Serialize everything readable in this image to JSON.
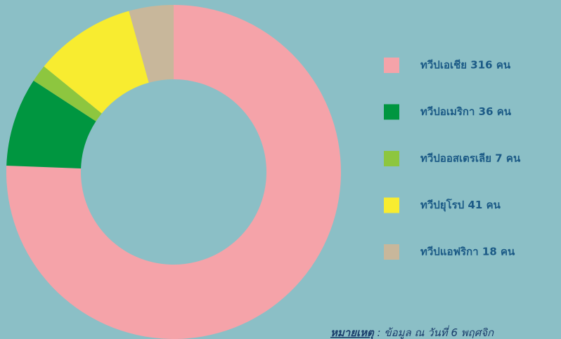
{
  "chart_data": {
    "type": "pie",
    "categories": [
      "ทวีปเอเชีย 316 คน",
      "ทวีปอเมริกา 36 คน",
      "ทวีปออสเตรเลีย 7 คน",
      "ทวีปยุโรป 41 คน",
      "ทวีปแอฟริกา 18 คน"
    ],
    "values": [
      316,
      36,
      7,
      41,
      18
    ],
    "colors": [
      "#f5a3a9",
      "#009640",
      "#8dc63f",
      "#f8ec30",
      "#c8b79b"
    ],
    "donut": true,
    "legend": "right",
    "annotation": {
      "label": "หมายเหตุ",
      "text": " : ข้อมูล ณ วันที่ 6 พฤศจิก"
    }
  }
}
